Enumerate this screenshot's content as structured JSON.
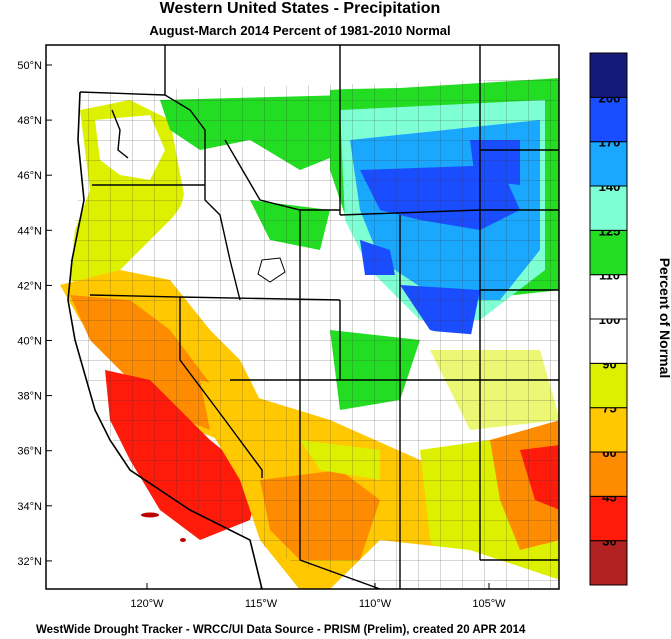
{
  "title": "Western United States - Precipitation",
  "subtitle": "August-March 2014  Percent of 1981-2010 Normal",
  "footer": "WestWide Drought Tracker - WRCC/UI  Data Source - PRISM (Prelim), created 20 APR 2014",
  "colorbar": {
    "title": "Percent of Normal",
    "levels": [
      {
        "color": "#b22222",
        "label": "30"
      },
      {
        "color": "#ff1a0a",
        "label": "45"
      },
      {
        "color": "#ff8c00",
        "label": "60"
      },
      {
        "color": "#ffc800",
        "label": "75"
      },
      {
        "color": "#dcf000",
        "label": "90"
      },
      {
        "color": "#ffffff",
        "label": "100"
      },
      {
        "color": "#ffffff",
        "label": "110"
      },
      {
        "color": "#22dd22",
        "label": "125"
      },
      {
        "color": "#7fffd4",
        "label": "140"
      },
      {
        "color": "#1aa8ff",
        "label": "170"
      },
      {
        "color": "#1a4dff",
        "label": "200"
      },
      {
        "color": "#131a7a",
        "label": ""
      }
    ]
  },
  "latitude_labels": [
    "50°N",
    "48°N",
    "46°N",
    "44°N",
    "42°N",
    "40°N",
    "38°N",
    "36°N",
    "34°N",
    "32°N"
  ],
  "longitude_labels": [
    "120°W",
    "115°W",
    "110°W",
    "105°W"
  ]
}
